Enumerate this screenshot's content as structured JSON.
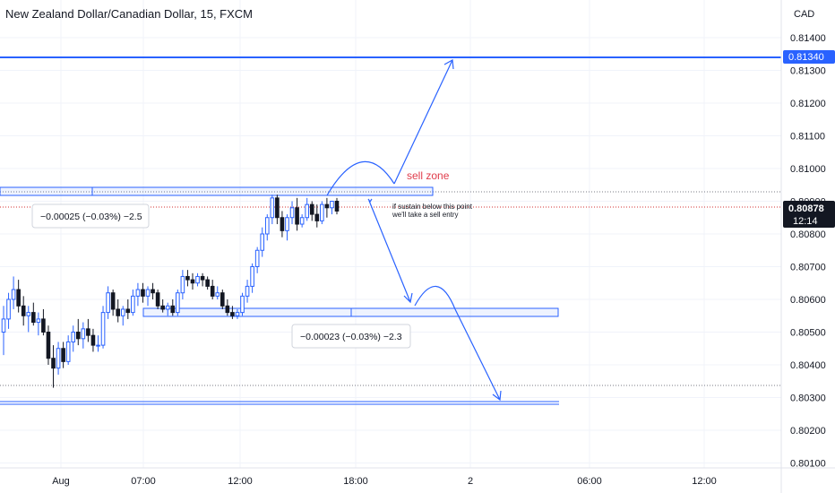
{
  "title": "New Zealand Dollar/Canadian Dollar, 15, FXCM",
  "currency": "CAD",
  "price_tags": {
    "target_level": "0.81340",
    "last_price": "0.80878",
    "countdown": "12:14"
  },
  "annotations": {
    "sell_zone": "sell zone",
    "note_line1": "if sustain below this point",
    "note_line2": "we'll take a sell entry",
    "measure_top": "−0.00025 (−0.03%) −2.5",
    "measure_bottom": "−0.00023 (−0.03%) −2.3"
  },
  "colors": {
    "up": "#2962ff",
    "down": "#131722",
    "drawing": "#2962ff",
    "sell_zone_text": "#e03c4b",
    "grid": "#f0f3fa",
    "tag_bg": "#131722"
  },
  "chart_data": {
    "type": "candlestick",
    "title": "New Zealand Dollar/Canadian Dollar, 15, FXCM",
    "y_unit": "CAD",
    "ylim": [
      0.80085,
      0.81515
    ],
    "y_ticks": [
      "0.81400",
      "0.81300",
      "0.81200",
      "0.81100",
      "0.81000",
      "0.80900",
      "0.80800",
      "0.80700",
      "0.80600",
      "0.80500",
      "0.80400",
      "0.80300",
      "0.80200",
      "0.80100"
    ],
    "x_ticks": [
      "Aug",
      "07:00",
      "12:00",
      "18:00",
      "2",
      "06:00",
      "12:00"
    ],
    "grid": true,
    "candles": [
      {
        "o": 0.805,
        "h": 0.8058,
        "l": 0.8043,
        "c": 0.8054
      },
      {
        "o": 0.8054,
        "h": 0.8062,
        "l": 0.8051,
        "c": 0.806
      },
      {
        "o": 0.806,
        "h": 0.8067,
        "l": 0.8057,
        "c": 0.8063
      },
      {
        "o": 0.8063,
        "h": 0.8066,
        "l": 0.8056,
        "c": 0.8058
      },
      {
        "o": 0.8058,
        "h": 0.8061,
        "l": 0.8052,
        "c": 0.8055
      },
      {
        "o": 0.8055,
        "h": 0.8058,
        "l": 0.805,
        "c": 0.8056
      },
      {
        "o": 0.8056,
        "h": 0.8059,
        "l": 0.8052,
        "c": 0.8053
      },
      {
        "o": 0.8053,
        "h": 0.8056,
        "l": 0.8049,
        "c": 0.8054
      },
      {
        "o": 0.8054,
        "h": 0.8057,
        "l": 0.8049,
        "c": 0.805
      },
      {
        "o": 0.805,
        "h": 0.8052,
        "l": 0.804,
        "c": 0.8042
      },
      {
        "o": 0.8042,
        "h": 0.8046,
        "l": 0.8033,
        "c": 0.8039
      },
      {
        "o": 0.8039,
        "h": 0.8047,
        "l": 0.8037,
        "c": 0.8045
      },
      {
        "o": 0.8045,
        "h": 0.8047,
        "l": 0.8039,
        "c": 0.8041
      },
      {
        "o": 0.8041,
        "h": 0.8049,
        "l": 0.804,
        "c": 0.8047
      },
      {
        "o": 0.8047,
        "h": 0.8052,
        "l": 0.8044,
        "c": 0.805
      },
      {
        "o": 0.805,
        "h": 0.8054,
        "l": 0.8046,
        "c": 0.8048
      },
      {
        "o": 0.8048,
        "h": 0.8053,
        "l": 0.8045,
        "c": 0.8051
      },
      {
        "o": 0.8051,
        "h": 0.8054,
        "l": 0.8047,
        "c": 0.8049
      },
      {
        "o": 0.8049,
        "h": 0.8051,
        "l": 0.8044,
        "c": 0.8046
      },
      {
        "o": 0.8046,
        "h": 0.8049,
        "l": 0.8044,
        "c": 0.8046
      },
      {
        "o": 0.8046,
        "h": 0.8058,
        "l": 0.8045,
        "c": 0.8056
      },
      {
        "o": 0.8056,
        "h": 0.8064,
        "l": 0.8054,
        "c": 0.8062
      },
      {
        "o": 0.8062,
        "h": 0.8063,
        "l": 0.8055,
        "c": 0.8057
      },
      {
        "o": 0.8057,
        "h": 0.806,
        "l": 0.8053,
        "c": 0.8055
      },
      {
        "o": 0.8055,
        "h": 0.8058,
        "l": 0.8052,
        "c": 0.8057
      },
      {
        "o": 0.8057,
        "h": 0.806,
        "l": 0.8054,
        "c": 0.8056
      },
      {
        "o": 0.8056,
        "h": 0.8063,
        "l": 0.8055,
        "c": 0.8061
      },
      {
        "o": 0.8061,
        "h": 0.8065,
        "l": 0.8058,
        "c": 0.8063
      },
      {
        "o": 0.8063,
        "h": 0.8065,
        "l": 0.8059,
        "c": 0.8061
      },
      {
        "o": 0.8061,
        "h": 0.8064,
        "l": 0.8058,
        "c": 0.8063
      },
      {
        "o": 0.8063,
        "h": 0.8065,
        "l": 0.806,
        "c": 0.8062
      },
      {
        "o": 0.8062,
        "h": 0.8063,
        "l": 0.8057,
        "c": 0.8058
      },
      {
        "o": 0.8058,
        "h": 0.806,
        "l": 0.8056,
        "c": 0.8057
      },
      {
        "o": 0.8057,
        "h": 0.8059,
        "l": 0.8055,
        "c": 0.8058
      },
      {
        "o": 0.8058,
        "h": 0.806,
        "l": 0.8055,
        "c": 0.8056
      },
      {
        "o": 0.8056,
        "h": 0.8063,
        "l": 0.8055,
        "c": 0.8062
      },
      {
        "o": 0.8062,
        "h": 0.8069,
        "l": 0.806,
        "c": 0.8067
      },
      {
        "o": 0.8067,
        "h": 0.8069,
        "l": 0.8064,
        "c": 0.8066
      },
      {
        "o": 0.8066,
        "h": 0.8068,
        "l": 0.8063,
        "c": 0.8065
      },
      {
        "o": 0.8065,
        "h": 0.8068,
        "l": 0.8064,
        "c": 0.8067
      },
      {
        "o": 0.8067,
        "h": 0.8068,
        "l": 0.8064,
        "c": 0.8066
      },
      {
        "o": 0.8066,
        "h": 0.8067,
        "l": 0.8063,
        "c": 0.8064
      },
      {
        "o": 0.8064,
        "h": 0.8066,
        "l": 0.806,
        "c": 0.8061
      },
      {
        "o": 0.8061,
        "h": 0.8064,
        "l": 0.806,
        "c": 0.8062
      },
      {
        "o": 0.8062,
        "h": 0.8063,
        "l": 0.8057,
        "c": 0.8058
      },
      {
        "o": 0.8058,
        "h": 0.806,
        "l": 0.8055,
        "c": 0.8056
      },
      {
        "o": 0.8056,
        "h": 0.8058,
        "l": 0.8054,
        "c": 0.8055
      },
      {
        "o": 0.8055,
        "h": 0.8057,
        "l": 0.8054,
        "c": 0.8056
      },
      {
        "o": 0.8056,
        "h": 0.8062,
        "l": 0.8055,
        "c": 0.8061
      },
      {
        "o": 0.8061,
        "h": 0.8066,
        "l": 0.8059,
        "c": 0.8064
      },
      {
        "o": 0.8064,
        "h": 0.8071,
        "l": 0.8062,
        "c": 0.807
      },
      {
        "o": 0.807,
        "h": 0.8076,
        "l": 0.8068,
        "c": 0.8075
      },
      {
        "o": 0.8075,
        "h": 0.8082,
        "l": 0.8073,
        "c": 0.808
      },
      {
        "o": 0.808,
        "h": 0.8086,
        "l": 0.8078,
        "c": 0.8085
      },
      {
        "o": 0.8085,
        "h": 0.8092,
        "l": 0.8083,
        "c": 0.8091
      },
      {
        "o": 0.8091,
        "h": 0.8092,
        "l": 0.8083,
        "c": 0.8085
      },
      {
        "o": 0.8085,
        "h": 0.8087,
        "l": 0.8079,
        "c": 0.8081
      },
      {
        "o": 0.8081,
        "h": 0.8086,
        "l": 0.8078,
        "c": 0.8085
      },
      {
        "o": 0.8085,
        "h": 0.809,
        "l": 0.8083,
        "c": 0.8088
      },
      {
        "o": 0.8088,
        "h": 0.8091,
        "l": 0.8081,
        "c": 0.8083
      },
      {
        "o": 0.8083,
        "h": 0.8086,
        "l": 0.8082,
        "c": 0.8085
      },
      {
        "o": 0.8085,
        "h": 0.8091,
        "l": 0.8084,
        "c": 0.8089
      },
      {
        "o": 0.8089,
        "h": 0.809,
        "l": 0.8084,
        "c": 0.8086
      },
      {
        "o": 0.8086,
        "h": 0.8089,
        "l": 0.8082,
        "c": 0.8084
      },
      {
        "o": 0.8084,
        "h": 0.809,
        "l": 0.8083,
        "c": 0.8089
      },
      {
        "o": 0.8089,
        "h": 0.8091,
        "l": 0.8085,
        "c": 0.8088
      },
      {
        "o": 0.8088,
        "h": 0.809,
        "l": 0.8086,
        "c": 0.809
      },
      {
        "o": 0.809,
        "h": 0.8091,
        "l": 0.8086,
        "c": 0.8087
      }
    ],
    "levels": [
      {
        "label": "0.81340",
        "price": 0.8134
      },
      {
        "label": "sell zone",
        "from": 0.80903,
        "to": 0.8092
      },
      {
        "label": "",
        "from": 0.80565,
        "to": 0.8058
      },
      {
        "label": "",
        "from": 0.80271,
        "to": 0.80278
      }
    ]
  }
}
